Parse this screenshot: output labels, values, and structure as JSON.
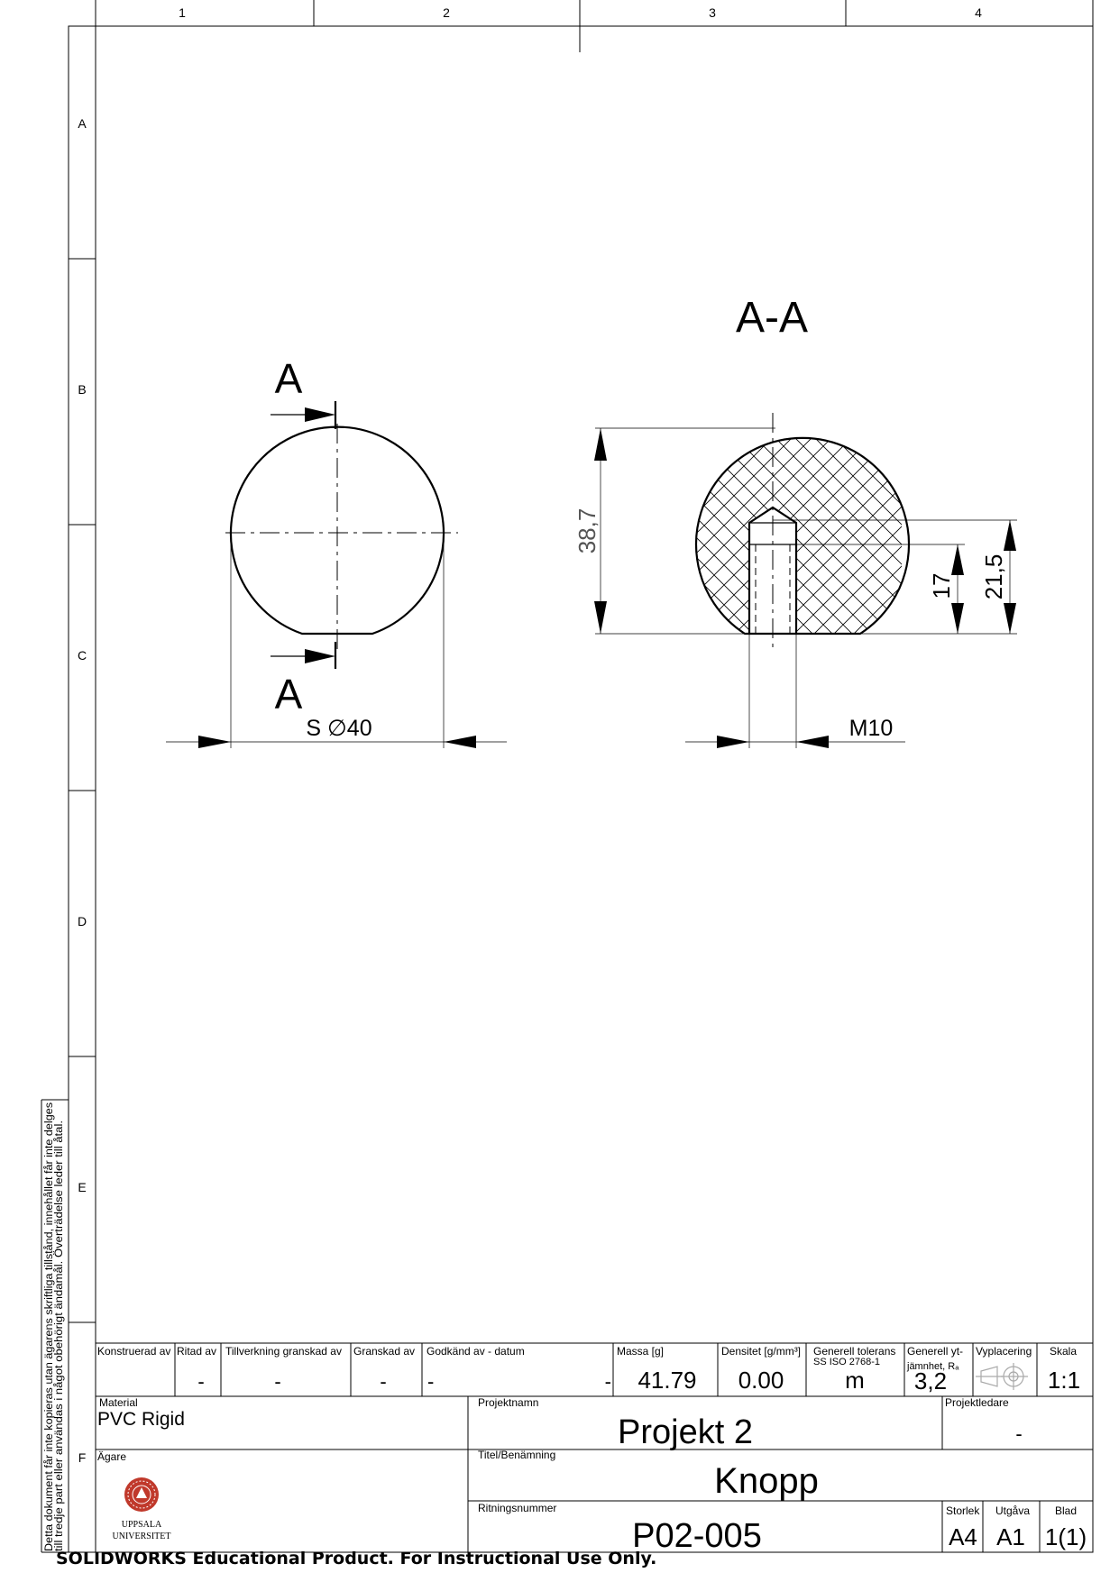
{
  "frame": {
    "columns": [
      "1",
      "2",
      "3",
      "4"
    ],
    "rows": [
      "A",
      "B",
      "C",
      "D",
      "E",
      "F"
    ]
  },
  "disclaimer": {
    "line1": "Detta dokument får inte kopieras utan ägarens skriftliga tillstånd, innehållet får inte delges",
    "line2": "till tredje part eller användas i något obehörigt ändamål. Överträdelse leder till åtal."
  },
  "drawing": {
    "section_label_top": "A",
    "section_label_bottom": "A",
    "section_view_title": "A-A",
    "dim_diameter": "S ∅40",
    "dim_height": "38,7",
    "dim_thread_depth": "17",
    "dim_bore_depth": "21,5",
    "dim_thread": "M10"
  },
  "title_block": {
    "row1": {
      "konstruerad_label": "Konstruerad av",
      "ritad_label": "Ritad av",
      "ritad_value": "-",
      "tillverkning_label": "Tillverkning granskad av",
      "tillverkning_value": "-",
      "granskad_label": "Granskad av",
      "granskad_value": "-",
      "godkand_label": "Godkänd av - datum",
      "godkand_value_left": "-",
      "godkand_value_right": "-",
      "massa_label": "Massa [g]",
      "massa_value": "41.79",
      "densitet_label": "Densitet [g/mm³]",
      "densitet_value": "0.00",
      "tolerans_label1": "Generell tolerans",
      "tolerans_label2": "SS ISO 2768-1",
      "tolerans_value": "m",
      "yt_label1": "Generell yt-",
      "yt_label2": "jämnhet, Rₐ",
      "yt_value": "3,2",
      "vyplacering_label": "Vyplacering",
      "skala_label": "Skala",
      "skala_value": "1:1"
    },
    "material_label": "Material",
    "material_value": "PVC Rigid",
    "projektnamn_label": "Projektnamn",
    "projektnamn_value": "Projekt 2",
    "projektledare_label": "Projektledare",
    "projektledare_value": "-",
    "agare_label": "Ägare",
    "logo_text1": "UPPSALA",
    "logo_text2": "UNIVERSITET",
    "titel_label": "Titel/Benämning",
    "titel_value": "Knopp",
    "ritningsnummer_label": "Ritningsnummer",
    "ritningsnummer_value": "P02-005",
    "storlek_label": "Storlek",
    "storlek_value": "A4",
    "utgava_label": "Utgåva",
    "utgava_value": "A1",
    "blad_label": "Blad",
    "blad_value": "1(1)"
  },
  "footer_text": "SOLIDWORKS Educational Product. For Instructional Use Only."
}
